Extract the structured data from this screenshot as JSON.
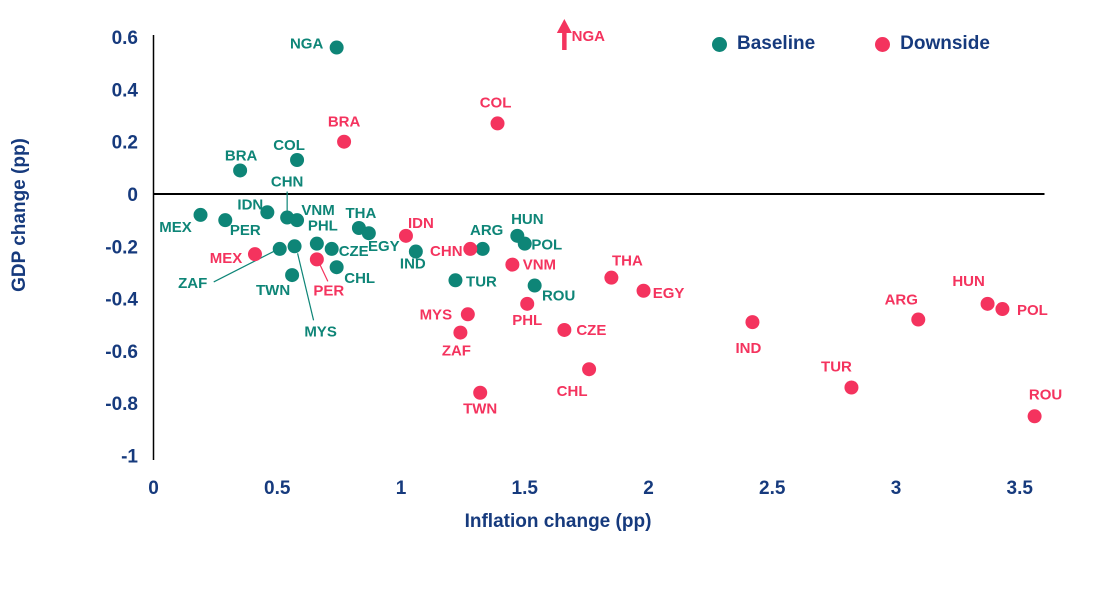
{
  "colors": {
    "baseline": "#0E8577",
    "downside": "#F4335E",
    "navy": "#163A7D",
    "axis": "#000000"
  },
  "chart_data": {
    "type": "scatter",
    "xlabel": "Inflation change (pp)",
    "ylabel": "GDP change (pp)",
    "xlim": [
      0,
      3.6
    ],
    "ylim": [
      -1,
      0.6
    ],
    "grid": false,
    "legend_position": "top-right",
    "xticks": [
      {
        "v": 0,
        "label": "0"
      },
      {
        "v": 0.5,
        "label": "0.5"
      },
      {
        "v": 1,
        "label": "1"
      },
      {
        "v": 1.5,
        "label": "1.5"
      },
      {
        "v": 2,
        "label": "2"
      },
      {
        "v": 2.5,
        "label": "2.5"
      },
      {
        "v": 3,
        "label": "3"
      },
      {
        "v": 3.5,
        "label": "3.5"
      }
    ],
    "yticks": [
      {
        "v": 0.6,
        "label": "0.6"
      },
      {
        "v": 0.4,
        "label": "0.4"
      },
      {
        "v": 0.2,
        "label": "0.2"
      },
      {
        "v": 0,
        "label": "0"
      },
      {
        "v": -0.2,
        "label": "-0.2"
      },
      {
        "v": -0.4,
        "label": "-0.4"
      },
      {
        "v": -0.6,
        "label": "-0.6"
      },
      {
        "v": -0.8,
        "label": "-0.8"
      },
      {
        "v": -1,
        "label": "-1"
      }
    ],
    "legend": [
      {
        "name": "Baseline",
        "color": "#0E8577"
      },
      {
        "name": "Downside",
        "color": "#F4335E"
      }
    ],
    "series": [
      {
        "name": "Baseline",
        "color": "#0E8577",
        "points": [
          {
            "code": "MEX",
            "x": 0.19,
            "y": -0.08,
            "dx": -25,
            "dy": 12
          },
          {
            "code": "PER",
            "x": 0.29,
            "y": -0.1,
            "dx": 20,
            "dy": 10
          },
          {
            "code": "BRA",
            "x": 0.35,
            "y": 0.09,
            "dx": 1,
            "dy": -15
          },
          {
            "code": "IDN",
            "x": 0.46,
            "y": -0.07,
            "dx": -17,
            "dy": -8
          },
          {
            "code": "ZAF",
            "x": 0.51,
            "y": -0.21,
            "dx": -87,
            "dy": 34,
            "leader": [
              -66,
              33,
              -5,
              2
            ]
          },
          {
            "code": "CHN",
            "x": 0.54,
            "y": -0.09,
            "dx": 0,
            "dy": -36,
            "leader": [
              0,
              -26,
              0,
              -5
            ]
          },
          {
            "code": "TWN",
            "x": 0.56,
            "y": -0.31,
            "dx": -19,
            "dy": 15
          },
          {
            "code": "MYS",
            "x": 0.57,
            "y": -0.2,
            "dx": 26,
            "dy": 85,
            "leader": [
              3,
              7,
              19,
              74
            ]
          },
          {
            "code": "VNM",
            "x": 0.58,
            "y": -0.1,
            "dx": 21,
            "dy": -10
          },
          {
            "code": "COL",
            "x": 0.58,
            "y": 0.13,
            "dx": -8,
            "dy": -15
          },
          {
            "code": "PHL",
            "x": 0.66,
            "y": -0.19,
            "dx": 6,
            "dy": -18
          },
          {
            "code": "CZE",
            "x": 0.72,
            "y": -0.21,
            "dx": 22,
            "dy": 2
          },
          {
            "code": "CHL",
            "x": 0.74,
            "y": -0.28,
            "dx": 23,
            "dy": 11
          },
          {
            "code": "NGA",
            "x": 0.74,
            "y": 0.56,
            "dx": -30,
            "dy": -4
          },
          {
            "code": "THA",
            "x": 0.83,
            "y": -0.13,
            "dx": 2,
            "dy": -15
          },
          {
            "code": "EGY",
            "x": 0.87,
            "y": -0.15,
            "dx": 15,
            "dy": 13
          },
          {
            "code": "IND",
            "x": 1.06,
            "y": -0.22,
            "dx": -3,
            "dy": 12
          },
          {
            "code": "TUR",
            "x": 1.22,
            "y": -0.33,
            "dx": 26,
            "dy": 1
          },
          {
            "code": "ARG",
            "x": 1.33,
            "y": -0.21,
            "dx": 4,
            "dy": -19
          },
          {
            "code": "HUN",
            "x": 1.47,
            "y": -0.16,
            "dx": 10,
            "dy": -17
          },
          {
            "code": "POL",
            "x": 1.5,
            "y": -0.19,
            "dx": 22,
            "dy": 1
          },
          {
            "code": "ROU",
            "x": 1.54,
            "y": -0.35,
            "dx": 24,
            "dy": 10
          }
        ]
      },
      {
        "name": "Downside",
        "color": "#F4335E",
        "points": [
          {
            "code": "MEX",
            "x": 0.41,
            "y": -0.23,
            "dx": -29,
            "dy": 4
          },
          {
            "code": "PER",
            "x": 0.66,
            "y": -0.25,
            "dx": 12,
            "dy": 31,
            "leader": [
              3,
              5,
              11,
              22
            ]
          },
          {
            "code": "BRA",
            "x": 0.77,
            "y": 0.2,
            "dx": 0,
            "dy": -20
          },
          {
            "code": "IDN",
            "x": 1.02,
            "y": -0.16,
            "dx": 15,
            "dy": -13
          },
          {
            "code": "ZAF",
            "x": 1.24,
            "y": -0.53,
            "dx": -4,
            "dy": 18
          },
          {
            "code": "MYS",
            "x": 1.27,
            "y": -0.46,
            "dx": -32,
            "dy": 0
          },
          {
            "code": "CHN",
            "x": 1.28,
            "y": -0.21,
            "dx": -24,
            "dy": 2
          },
          {
            "code": "TWN",
            "x": 1.32,
            "y": -0.76,
            "dx": 0,
            "dy": 16
          },
          {
            "code": "COL",
            "x": 1.39,
            "y": 0.27,
            "dx": -2,
            "dy": -21
          },
          {
            "code": "VNM",
            "x": 1.45,
            "y": -0.27,
            "dx": 27,
            "dy": 0
          },
          {
            "code": "PHL",
            "x": 1.51,
            "y": -0.42,
            "dx": 0,
            "dy": 16
          },
          {
            "code": "NGA",
            "x": 1.66,
            "y": 0.6,
            "arrow": true,
            "note": "off-chart above +0.6",
            "dx": 24,
            "dy": 0
          },
          {
            "code": "CZE",
            "x": 1.66,
            "y": -0.52,
            "dx": 27,
            "dy": 0
          },
          {
            "code": "CHL",
            "x": 1.76,
            "y": -0.67,
            "dx": -17,
            "dy": 22
          },
          {
            "code": "THA",
            "x": 1.85,
            "y": -0.32,
            "dx": 16,
            "dy": -17
          },
          {
            "code": "EGY",
            "x": 1.98,
            "y": -0.37,
            "dx": 25,
            "dy": 2
          },
          {
            "code": "IND",
            "x": 2.42,
            "y": -0.49,
            "dx": -4,
            "dy": 26
          },
          {
            "code": "TUR",
            "x": 2.82,
            "y": -0.74,
            "dx": -15,
            "dy": -21
          },
          {
            "code": "ARG",
            "x": 3.09,
            "y": -0.48,
            "dx": -17,
            "dy": -20
          },
          {
            "code": "HUN",
            "x": 3.37,
            "y": -0.42,
            "dx": -19,
            "dy": -23
          },
          {
            "code": "POL",
            "x": 3.43,
            "y": -0.44,
            "dx": 30,
            "dy": 1
          },
          {
            "code": "ROU",
            "x": 3.56,
            "y": -0.85,
            "dx": 11,
            "dy": -22
          }
        ]
      }
    ]
  }
}
